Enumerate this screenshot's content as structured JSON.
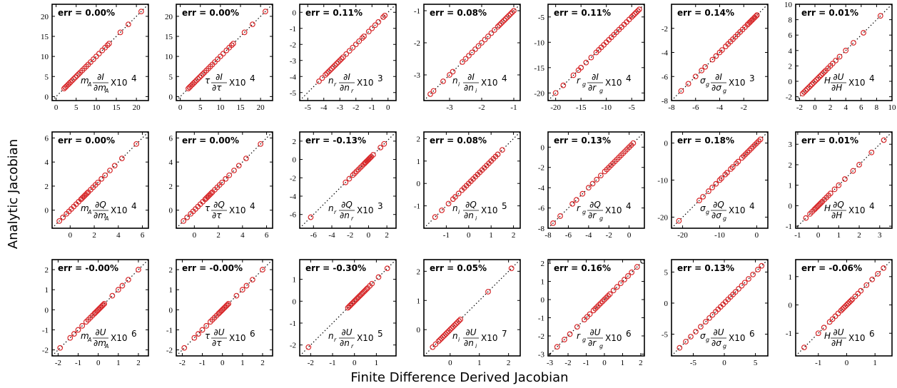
{
  "figure": {
    "ylabel": "Analytic Jacobian",
    "xlabel": "Finite Difference Derived Jacobian"
  },
  "chart_data": [
    {
      "type": "scatter",
      "err": "err =   0.00%",
      "label": {
        "pre": "m",
        "sub": "A",
        "num": "∂I",
        "den": "∂m",
        "densub": "A",
        "scale": "X10",
        "exp": "4"
      },
      "xlim": [
        -1,
        23
      ],
      "ylim": [
        -1,
        23
      ],
      "xticks": [
        0,
        5,
        10,
        15,
        20
      ],
      "yticks": [
        0,
        5,
        10,
        15,
        20
      ],
      "x": [
        2,
        2.3,
        2.6,
        3,
        3.3,
        3.6,
        4,
        4.4,
        4.8,
        5.2,
        5.6,
        6,
        6.5,
        7,
        7.5,
        8,
        8.6,
        9.3,
        10,
        10.7,
        11.5,
        12.2,
        12.8,
        13.2,
        16,
        18,
        21.2
      ]
    },
    {
      "type": "scatter",
      "err": "err =   0.00%",
      "label": {
        "pre": "τ",
        "sub": "",
        "num": "∂I",
        "den": "∂τ",
        "densub": "",
        "scale": "X10",
        "exp": "4"
      },
      "xlim": [
        -1,
        23
      ],
      "ylim": [
        -1,
        23
      ],
      "xticks": [
        0,
        5,
        10,
        15,
        20
      ],
      "yticks": [
        0,
        5,
        10,
        15,
        20
      ],
      "x": [
        2,
        2.3,
        2.6,
        3,
        3.3,
        3.6,
        4,
        4.4,
        4.8,
        5.2,
        5.6,
        6,
        6.5,
        7,
        7.5,
        8,
        8.6,
        9.3,
        10,
        10.7,
        11.5,
        12.2,
        12.8,
        13.2,
        16,
        18,
        21.2
      ]
    },
    {
      "type": "scatter",
      "err": "err =   0.11%",
      "label": {
        "pre": "n",
        "sub": "r",
        "num": "∂I",
        "den": "∂n",
        "densub": "r",
        "scale": "X10",
        "exp": "3"
      },
      "xlim": [
        -5.5,
        0.5
      ],
      "ylim": [
        -5.5,
        0.5
      ],
      "xticks": [
        -5,
        -4,
        -3,
        -2,
        -1,
        0
      ],
      "yticks": [
        -5,
        -4,
        -3,
        -2,
        -1,
        0
      ],
      "x": [
        -4.3,
        -4.1,
        -3.9,
        -3.8,
        -3.7,
        -3.6,
        -3.5,
        -3.4,
        -3.3,
        -3.2,
        -3.1,
        -3,
        -2.9,
        -2.8,
        -2.6,
        -2.4,
        -2.2,
        -2,
        -1.8,
        -1.6,
        -1.5,
        -1.2,
        -1,
        -0.8,
        -0.6,
        -0.3,
        -0.2
      ]
    },
    {
      "type": "scatter",
      "err": "err =   0.08%",
      "label": {
        "pre": "n",
        "sub": "i",
        "num": "∂I",
        "den": "∂n",
        "densub": "i",
        "scale": "X10",
        "exp": "4"
      },
      "xlim": [
        -3.8,
        -0.8
      ],
      "ylim": [
        -3.8,
        -0.8
      ],
      "xticks": [
        -3,
        -2,
        -1
      ],
      "yticks": [
        -3,
        -2,
        -1
      ],
      "x": [
        -3.6,
        -3.5,
        -3.2,
        -3,
        -2.9,
        -2.6,
        -2.5,
        -2.4,
        -2.3,
        -2.2,
        -2.1,
        -2,
        -1.9,
        -1.8,
        -1.7,
        -1.6,
        -1.5,
        -1.45,
        -1.4,
        -1.35,
        -1.3,
        -1.25,
        -1.2,
        -1.15,
        -1.1,
        -1.05,
        -1
      ]
    },
    {
      "type": "scatter",
      "err": "err =   0.11%",
      "label": {
        "pre": "r",
        "sub": "g",
        "num": "∂I",
        "den": "∂r",
        "densub": "g",
        "scale": "X10",
        "exp": "4"
      },
      "xlim": [
        -21.5,
        -2.5
      ],
      "ylim": [
        -21.5,
        -2.5
      ],
      "xticks": [
        -20,
        -15,
        -10,
        -5
      ],
      "yticks": [
        -20,
        -15,
        -10,
        -5
      ],
      "x": [
        -20,
        -18.5,
        -16.5,
        -15.5,
        -15,
        -14,
        -13,
        -12,
        -11.5,
        -11,
        -10.5,
        -10,
        -9.5,
        -9,
        -8.5,
        -8,
        -7.5,
        -7,
        -6.5,
        -6,
        -5.5,
        -5,
        -4.7,
        -4.4,
        -4.1,
        -3.8,
        -3.5
      ]
    },
    {
      "type": "scatter",
      "err": "err =   0.14%",
      "label": {
        "pre": "σ",
        "sub": "g",
        "num": "∂I",
        "den": "∂σ",
        "densub": "g",
        "scale": "X10",
        "exp": "3"
      },
      "xlim": [
        -8,
        0
      ],
      "ylim": [
        -8,
        0
      ],
      "xticks": [
        -8,
        -6,
        -4,
        -2
      ],
      "yticks": [
        -8,
        -6,
        -4,
        -2
      ],
      "x": [
        -7.2,
        -6.6,
        -6,
        -5.5,
        -5.2,
        -4.6,
        -4.3,
        -4,
        -3.8,
        -3.5,
        -3.3,
        -3.1,
        -2.9,
        -2.7,
        -2.5,
        -2.3,
        -2.1,
        -1.9,
        -1.7,
        -1.6,
        -1.5,
        -1.4,
        -1.3,
        -1.2,
        -1.1,
        -1,
        -0.9
      ]
    },
    {
      "type": "scatter",
      "err": "err =   0.01%",
      "label": {
        "pre": "H",
        "sub": "",
        "num": "∂U",
        "den": "∂H",
        "densub": "",
        "scale": "X10",
        "exp": "4"
      },
      "xlim": [
        -2.5,
        10
      ],
      "ylim": [
        -2.5,
        10
      ],
      "xticks": [
        -2,
        0,
        2,
        4,
        6,
        8,
        10
      ],
      "yticks": [
        -2,
        0,
        2,
        4,
        6,
        8,
        10
      ],
      "x": [
        -1.6,
        -1.4,
        -1.2,
        -1,
        -0.8,
        -0.6,
        -0.4,
        -0.2,
        0,
        0.2,
        0.4,
        0.6,
        0.8,
        1,
        1.2,
        1.4,
        1.7,
        2,
        2.3,
        2.7,
        3.2,
        4,
        5,
        6.3,
        8.5
      ]
    },
    {
      "type": "scatter",
      "err": "err =   0.00%",
      "label": {
        "pre": "m",
        "sub": "A",
        "num": "∂Q",
        "den": "∂m",
        "densub": "A",
        "scale": "X10",
        "exp": "4"
      },
      "xlim": [
        -1.5,
        6.5
      ],
      "ylim": [
        -1.5,
        6.5
      ],
      "xticks": [
        0,
        2,
        4,
        6
      ],
      "yticks": [
        0,
        2,
        4,
        6
      ],
      "x": [
        -0.9,
        -0.6,
        -0.3,
        -0.1,
        0.1,
        0.3,
        0.5,
        0.7,
        0.9,
        1,
        1.1,
        1.2,
        1.3,
        1.4,
        1.5,
        1.7,
        1.9,
        2.1,
        2.3,
        2.6,
        2.9,
        3.3,
        3.7,
        4.3,
        5.5
      ]
    },
    {
      "type": "scatter",
      "err": "err =   0.00%",
      "label": {
        "pre": "τ",
        "sub": "",
        "num": "∂Q",
        "den": "∂τ",
        "densub": "",
        "scale": "X10",
        "exp": "4"
      },
      "xlim": [
        -1.5,
        6.5
      ],
      "ylim": [
        -1.5,
        6.5
      ],
      "xticks": [
        0,
        2,
        4,
        6
      ],
      "yticks": [
        0,
        2,
        4,
        6
      ],
      "x": [
        -0.9,
        -0.6,
        -0.3,
        -0.1,
        0.1,
        0.3,
        0.5,
        0.7,
        0.9,
        1,
        1.1,
        1.2,
        1.3,
        1.4,
        1.5,
        1.7,
        1.9,
        2.1,
        2.3,
        2.6,
        2.9,
        3.3,
        3.7,
        4.3,
        5.5
      ]
    },
    {
      "type": "scatter",
      "err": "err = -0.13%",
      "label": {
        "pre": "n",
        "sub": "r",
        "num": "∂Q",
        "den": "∂n",
        "densub": "r",
        "scale": "X10",
        "exp": "3"
      },
      "xlim": [
        -7.5,
        3
      ],
      "ylim": [
        -7.5,
        3
      ],
      "xticks": [
        -6,
        -4,
        -2,
        0,
        2
      ],
      "yticks": [
        -6,
        -4,
        -2,
        0,
        2
      ],
      "x": [
        -6.3,
        -2.5,
        -2.1,
        -1.7,
        -1.5,
        -1.3,
        -1.1,
        -0.9,
        -0.7,
        -0.5,
        -0.4,
        -0.3,
        -0.2,
        -0.1,
        0,
        0.1,
        0.2,
        0.3,
        0.5,
        1.3,
        1.7
      ]
    },
    {
      "type": "scatter",
      "err": "err =   0.08%",
      "label": {
        "pre": "n",
        "sub": "i",
        "num": "∂Q",
        "den": "∂n",
        "densub": "i",
        "scale": "X10",
        "exp": "5"
      },
      "xlim": [
        -2,
        2.3
      ],
      "ylim": [
        -2,
        2.3
      ],
      "xticks": [
        -1,
        0,
        1,
        2
      ],
      "yticks": [
        -1,
        0,
        1,
        2
      ],
      "x": [
        -1.5,
        -1.2,
        -0.9,
        -0.7,
        -0.6,
        -0.45,
        -0.3,
        -0.2,
        -0.1,
        0,
        0.1,
        0.2,
        0.3,
        0.4,
        0.5,
        0.6,
        0.7,
        0.8,
        0.9,
        1,
        1.1,
        1.2,
        1.3,
        1.5
      ]
    },
    {
      "type": "scatter",
      "err": "err =   0.13%",
      "label": {
        "pre": "r",
        "sub": "g",
        "num": "∂Q",
        "den": "∂r",
        "densub": "g",
        "scale": "X10",
        "exp": "4"
      },
      "xlim": [
        -8,
        1.5
      ],
      "ylim": [
        -8,
        1.5
      ],
      "xticks": [
        -8,
        -6,
        -4,
        -2,
        0
      ],
      "yticks": [
        -8,
        -6,
        -4,
        -2,
        0
      ],
      "x": [
        -7.5,
        -6.8,
        -5.6,
        -5.2,
        -4.6,
        -4,
        -3.6,
        -3.2,
        -2.8,
        -2.4,
        -2.2,
        -2,
        -1.8,
        -1.6,
        -1.4,
        -1.2,
        -1,
        -0.8,
        -0.6,
        -0.4,
        -0.2,
        0,
        0.2,
        0.4
      ]
    },
    {
      "type": "scatter",
      "err": "err =   0.18%",
      "label": {
        "pre": "σ",
        "sub": "g",
        "num": "∂Q",
        "den": "∂σ",
        "densub": "g",
        "scale": "X10",
        "exp": "4"
      },
      "xlim": [
        -23,
        3
      ],
      "ylim": [
        -23,
        3
      ],
      "xticks": [
        -20,
        -10,
        0
      ],
      "yticks": [
        -20,
        -10,
        0
      ],
      "x": [
        -21,
        -15.5,
        -14.5,
        -13,
        -12,
        -11,
        -10,
        -9.5,
        -8.5,
        -8,
        -7,
        -6.5,
        -5.5,
        -5,
        -4,
        -3.5,
        -3,
        -2.5,
        -2,
        -1.5,
        -1,
        -0.5,
        0,
        0.5,
        1
      ]
    },
    {
      "type": "scatter",
      "err": "err =   0.01%",
      "label": {
        "pre": "H",
        "sub": "",
        "num": "∂Q",
        "den": "∂H",
        "densub": "",
        "scale": "X10",
        "exp": "4"
      },
      "xlim": [
        -1.1,
        3.6
      ],
      "ylim": [
        -1.1,
        3.6
      ],
      "xticks": [
        -1,
        0,
        1,
        2,
        3
      ],
      "yticks": [
        -1,
        0,
        1,
        2,
        3
      ],
      "x": [
        -0.6,
        -0.4,
        -0.3,
        -0.2,
        -0.15,
        -0.1,
        -0.05,
        0,
        0.05,
        0.1,
        0.15,
        0.2,
        0.3,
        0.4,
        0.5,
        0.6,
        0.8,
        1,
        1.3,
        1.7,
        2,
        2.6,
        3.2
      ]
    },
    {
      "type": "scatter",
      "err": "err = -0.00%",
      "label": {
        "pre": "m",
        "sub": "A",
        "num": "∂U",
        "den": "∂m",
        "densub": "A",
        "scale": "X10",
        "exp": "6"
      },
      "xlim": [
        -2.3,
        2.5
      ],
      "ylim": [
        -2.3,
        2.5
      ],
      "xticks": [
        -2,
        -1,
        0,
        1,
        2
      ],
      "yticks": [
        -2,
        -1,
        0,
        1,
        2
      ],
      "x": [
        -1.9,
        -1.4,
        -1.2,
        -1,
        -0.8,
        -0.6,
        -0.5,
        -0.4,
        -0.3,
        -0.2,
        -0.15,
        -0.1,
        -0.05,
        0,
        0.05,
        0.1,
        0.15,
        0.2,
        0.25,
        0.3,
        0.7,
        1,
        1.2,
        1.5,
        2
      ]
    },
    {
      "type": "scatter",
      "err": "err = -0.00%",
      "label": {
        "pre": "τ",
        "sub": "",
        "num": "∂U",
        "den": "∂τ",
        "densub": "",
        "scale": "X10",
        "exp": "6"
      },
      "xlim": [
        -2.3,
        2.5
      ],
      "ylim": [
        -2.3,
        2.5
      ],
      "xticks": [
        -2,
        -1,
        0,
        1,
        2
      ],
      "yticks": [
        -2,
        -1,
        0,
        1,
        2
      ],
      "x": [
        -1.9,
        -1.4,
        -1.2,
        -1,
        -0.8,
        -0.6,
        -0.5,
        -0.4,
        -0.3,
        -0.2,
        -0.15,
        -0.1,
        -0.05,
        0,
        0.05,
        0.1,
        0.15,
        0.2,
        0.25,
        0.3,
        0.7,
        1,
        1.2,
        1.5,
        2
      ]
    },
    {
      "type": "scatter",
      "err": "err = -0.30%",
      "label": {
        "pre": "n",
        "sub": "r",
        "num": "∂U",
        "den": "∂n",
        "densub": "r",
        "scale": "X10",
        "exp": "5"
      },
      "xlim": [
        -2.5,
        1.9
      ],
      "ylim": [
        -2.5,
        1.9
      ],
      "xticks": [
        -2,
        -1,
        0,
        1
      ],
      "yticks": [
        -2,
        -1,
        0,
        1
      ],
      "x": [
        -2.1,
        -0.3,
        -0.25,
        -0.2,
        -0.15,
        -0.1,
        -0.05,
        0,
        0.05,
        0.1,
        0.15,
        0.2,
        0.25,
        0.3,
        0.35,
        0.4,
        0.45,
        0.5,
        0.55,
        0.6,
        0.7,
        0.8,
        1.1,
        1.5
      ]
    },
    {
      "type": "scatter",
      "err": "err =   0.05%",
      "label": {
        "pre": "n",
        "sub": "i",
        "num": "∂U",
        "den": "∂n",
        "densub": "i",
        "scale": "X10",
        "exp": "7"
      },
      "xlim": [
        -0.9,
        2.4
      ],
      "ylim": [
        -0.9,
        2.4
      ],
      "xticks": [
        0,
        1,
        2
      ],
      "yticks": [
        0,
        1,
        2
      ],
      "x": [
        -0.6,
        -0.5,
        -0.4,
        -0.35,
        -0.3,
        -0.25,
        -0.2,
        -0.15,
        -0.1,
        -0.05,
        0,
        0.05,
        0.1,
        0.15,
        0.2,
        0.25,
        0.3,
        0.35,
        1.3,
        2.1
      ]
    },
    {
      "type": "scatter",
      "err": "err =   0.16%",
      "label": {
        "pre": "r",
        "sub": "g",
        "num": "∂U",
        "den": "∂r",
        "densub": "g",
        "scale": "X10",
        "exp": "6"
      },
      "xlim": [
        -3.1,
        2.2
      ],
      "ylim": [
        -3.1,
        2.2
      ],
      "xticks": [
        -3,
        -2,
        -1,
        0,
        1,
        2
      ],
      "yticks": [
        -3,
        -2,
        -1,
        0,
        1,
        2
      ],
      "x": [
        -2.6,
        -2.2,
        -1.9,
        -1.5,
        -1.1,
        -0.95,
        -0.8,
        -0.6,
        -0.5,
        -0.4,
        -0.3,
        -0.2,
        -0.1,
        0,
        0.1,
        0.2,
        0.3,
        0.5,
        0.7,
        0.9,
        1.1,
        1.3,
        1.5,
        1.8
      ]
    },
    {
      "type": "scatter",
      "err": "err =   0.13%",
      "label": {
        "pre": "σ",
        "sub": "g",
        "num": "∂U",
        "den": "∂σ",
        "densub": "g",
        "scale": "X10",
        "exp": "6"
      },
      "xlim": [
        -8.5,
        7
      ],
      "ylim": [
        -8.5,
        7
      ],
      "xticks": [
        -5,
        0,
        5
      ],
      "yticks": [
        -5,
        0,
        5
      ],
      "x": [
        -7.2,
        -6.2,
        -5.4,
        -4.6,
        -3.8,
        -3,
        -2.4,
        -1.9,
        -1.4,
        -1,
        -0.6,
        -0.2,
        0.2,
        0.6,
        1,
        1.4,
        1.8,
        2.3,
        2.8,
        3.3,
        3.9,
        4.6,
        5.4,
        6
      ]
    },
    {
      "type": "scatter",
      "err": "err = -0.06%",
      "label": {
        "pre": "H",
        "sub": "",
        "num": "∂U",
        "den": "∂H",
        "densub": "",
        "scale": "X10",
        "exp": "6"
      },
      "xlim": [
        -1.8,
        1.6
      ],
      "ylim": [
        -1.8,
        1.6
      ],
      "xticks": [
        -1,
        0,
        1
      ],
      "yticks": [
        -1,
        0,
        1
      ],
      "x": [
        -1.5,
        -1,
        -0.8,
        -0.6,
        -0.5,
        -0.4,
        -0.3,
        -0.2,
        -0.15,
        -0.1,
        -0.05,
        0,
        0.05,
        0.1,
        0.15,
        0.2,
        0.3,
        0.4,
        0.5,
        0.7,
        0.9,
        1.1,
        1.3
      ]
    }
  ],
  "colors": {
    "marker": "#d8282a",
    "axis": "#000000",
    "diagonal": "#000000"
  }
}
